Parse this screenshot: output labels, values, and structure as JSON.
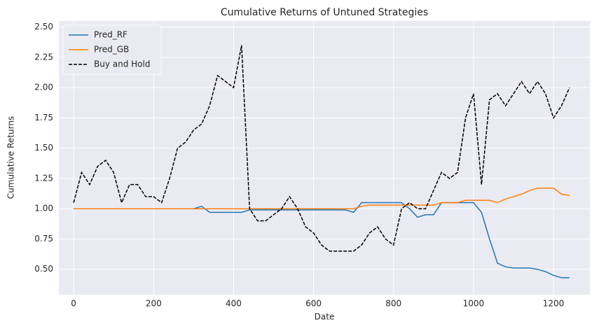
{
  "chart_data": {
    "type": "line",
    "title": "Cumulative Returns of Untuned Strategies",
    "x_label": "Date",
    "y_label": "Cumulative Returns",
    "x": [
      0,
      20,
      40,
      60,
      80,
      100,
      120,
      140,
      160,
      180,
      200,
      220,
      240,
      260,
      280,
      300,
      320,
      340,
      360,
      380,
      400,
      420,
      440,
      460,
      480,
      500,
      520,
      540,
      560,
      580,
      600,
      620,
      640,
      660,
      680,
      700,
      720,
      740,
      760,
      780,
      800,
      820,
      840,
      860,
      880,
      900,
      920,
      940,
      960,
      980,
      1000,
      1020,
      1040,
      1060,
      1080,
      1100,
      1120,
      1140,
      1160,
      1180,
      1200,
      1220,
      1240
    ],
    "series": [
      {
        "name": "Pred_RF",
        "color": "#1f77b4",
        "dash": "solid",
        "values": [
          1,
          1,
          1,
          1,
          1,
          1,
          1,
          1,
          1,
          1,
          1,
          1,
          1,
          1,
          1,
          1,
          1.02,
          0.97,
          0.97,
          0.97,
          0.97,
          0.97,
          0.99,
          0.99,
          0.99,
          0.99,
          0.99,
          0.99,
          0.99,
          0.99,
          0.99,
          0.99,
          0.99,
          0.99,
          0.99,
          0.97,
          1.05,
          1.05,
          1.05,
          1.05,
          1.05,
          1.05,
          1,
          0.93,
          0.95,
          0.95,
          1.05,
          1.05,
          1.05,
          1.05,
          1.05,
          0.97,
          0.75,
          0.55,
          0.52,
          0.51,
          0.51,
          0.51,
          0.5,
          0.48,
          0.45,
          0.43,
          0.43
        ]
      },
      {
        "name": "Pred_GB",
        "color": "#ff7f0e",
        "dash": "solid",
        "values": [
          1,
          1,
          1,
          1,
          1,
          1,
          1,
          1,
          1,
          1,
          1,
          1,
          1,
          1,
          1,
          1,
          1,
          1,
          1,
          1,
          1,
          1,
          1,
          1,
          1,
          1,
          1,
          1,
          1,
          1,
          1,
          1,
          1,
          1,
          1,
          1,
          1.02,
          1.03,
          1.03,
          1.03,
          1.03,
          1.03,
          1.03,
          1.03,
          1.03,
          1.03,
          1.05,
          1.05,
          1.05,
          1.07,
          1.07,
          1.07,
          1.07,
          1.05,
          1.08,
          1.1,
          1.12,
          1.15,
          1.17,
          1.17,
          1.17,
          1.12,
          1.11
        ]
      },
      {
        "name": "Buy and Hold",
        "color": "#000000",
        "dash": "dashed",
        "values": [
          1.05,
          1.3,
          1.2,
          1.35,
          1.4,
          1.3,
          1.05,
          1.2,
          1.2,
          1.1,
          1.1,
          1.05,
          1.25,
          1.5,
          1.55,
          1.65,
          1.7,
          1.85,
          2.1,
          2.05,
          2,
          2.35,
          1,
          0.9,
          0.9,
          0.95,
          1,
          1.1,
          1,
          0.85,
          0.8,
          0.7,
          0.65,
          0.65,
          0.65,
          0.65,
          0.7,
          0.8,
          0.85,
          0.75,
          0.7,
          1,
          1.05,
          1,
          1,
          1.15,
          1.3,
          1.25,
          1.3,
          1.75,
          1.95,
          1.2,
          1.9,
          1.95,
          1.85,
          1.95,
          2.05,
          1.95,
          2.05,
          1.95,
          1.75,
          1.85,
          2
        ]
      }
    ],
    "xlim": [
      -37,
      1291
    ],
    "ylim": [
      0.29,
      2.55
    ],
    "xticks": [
      0,
      200,
      400,
      600,
      800,
      1000,
      1200
    ],
    "yticks": [
      {
        "value": 0.5,
        "label": "0.50"
      },
      {
        "value": 0.75,
        "label": "0.75"
      },
      {
        "value": 1,
        "label": "1.00"
      },
      {
        "value": 1.25,
        "label": "1.25"
      },
      {
        "value": 1.5,
        "label": "1.50"
      },
      {
        "value": 1.75,
        "label": "1.75"
      },
      {
        "value": 2,
        "label": "2.00"
      },
      {
        "value": 2.25,
        "label": "2.25"
      },
      {
        "value": 2.5,
        "label": "2.50"
      }
    ],
    "grid": true,
    "legend": "upper left"
  }
}
